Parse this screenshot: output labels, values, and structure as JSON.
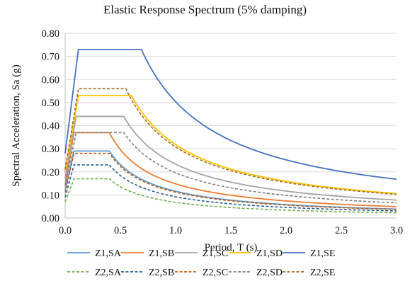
{
  "chart_data": {
    "type": "line",
    "title": "Elastic Response Spectrum (5% damping)",
    "xlabel": "Period, T (s)",
    "ylabel": "Spectral Acceleration, Sa (g)",
    "xlim": [
      0,
      3.0
    ],
    "ylim": [
      0,
      0.8
    ],
    "x_ticks": [
      "0.0",
      "0.5",
      "1.0",
      "1.5",
      "2.0",
      "2.5",
      "3.0"
    ],
    "y_ticks": [
      "0.00",
      "0.10",
      "0.20",
      "0.30",
      "0.40",
      "0.50",
      "0.60",
      "0.70",
      "0.80"
    ],
    "grid": "horizontal",
    "legend_position": "bottom",
    "series": [
      {
        "name": "Z1,SA",
        "color": "#5B9BD5",
        "dash": "solid",
        "a0": 0.12,
        "plateau": 0.29,
        "Tb": 0.08,
        "Tc": 0.4
      },
      {
        "name": "Z1,SB",
        "color": "#ED7D31",
        "dash": "solid",
        "a0": 0.14,
        "plateau": 0.37,
        "Tb": 0.08,
        "Tc": 0.4
      },
      {
        "name": "Z1,SC",
        "color": "#A5A5A5",
        "dash": "solid",
        "a0": 0.17,
        "plateau": 0.44,
        "Tb": 0.1,
        "Tc": 0.53
      },
      {
        "name": "Z1,SD",
        "color": "#FFC000",
        "dash": "solid",
        "a0": 0.2,
        "plateau": 0.53,
        "Tb": 0.12,
        "Tc": 0.6
      },
      {
        "name": "Z1,SE",
        "color": "#4472C4",
        "dash": "solid",
        "a0": 0.28,
        "plateau": 0.73,
        "Tb": 0.12,
        "Tc": 0.69
      },
      {
        "name": "Z2,SA",
        "color": "#70AD47",
        "dash": "dashed",
        "a0": 0.07,
        "plateau": 0.17,
        "Tb": 0.08,
        "Tc": 0.4
      },
      {
        "name": "Z2,SB",
        "color": "#255E91",
        "dash": "dashed",
        "a0": 0.09,
        "plateau": 0.23,
        "Tb": 0.08,
        "Tc": 0.4
      },
      {
        "name": "Z2,SC",
        "color": "#C55A11",
        "dash": "dashed",
        "a0": 0.11,
        "plateau": 0.28,
        "Tb": 0.08,
        "Tc": 0.4
      },
      {
        "name": "Z2,SD",
        "color": "#7F7F7F",
        "dash": "dashed",
        "a0": 0.14,
        "plateau": 0.37,
        "Tb": 0.1,
        "Tc": 0.53
      },
      {
        "name": "Z2,SE",
        "color": "#9E6B1E",
        "dash": "dashed",
        "a0": 0.21,
        "plateau": 0.56,
        "Tb": 0.12,
        "Tc": 0.55
      }
    ]
  }
}
